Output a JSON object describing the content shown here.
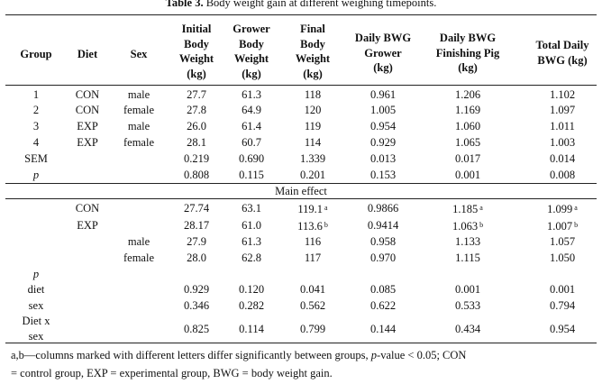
{
  "caption": {
    "label": "Table 3.",
    "text": "Body weight gain at different weighing timepoints."
  },
  "headers": {
    "group": "Group",
    "diet": "Diet",
    "sex": "Sex",
    "initial": [
      "Initial",
      "Body",
      "Weight",
      "(kg)"
    ],
    "grower": [
      "Grower",
      "Body",
      "Weight",
      "(kg)"
    ],
    "final": [
      "Final",
      "Body",
      "Weight",
      "(kg)"
    ],
    "dbwg_grower": [
      "Daily BWG",
      "Grower",
      "(kg)"
    ],
    "dbwg_finishing": [
      "Daily BWG",
      "Finishing Pig",
      "(kg)"
    ],
    "total": [
      "Total Daily",
      "BWG (kg)"
    ]
  },
  "group_rows": [
    {
      "group": "1",
      "diet": "CON",
      "sex": "male",
      "initial": "27.7",
      "grower": "61.3",
      "final": "118",
      "dbwg_grower": "0.961",
      "dbwg_finishing": "1.206",
      "total": "1.102"
    },
    {
      "group": "2",
      "diet": "CON",
      "sex": "female",
      "initial": "27.8",
      "grower": "64.9",
      "final": "120",
      "dbwg_grower": "1.005",
      "dbwg_finishing": "1.169",
      "total": "1.097"
    },
    {
      "group": "3",
      "diet": "EXP",
      "sex": "male",
      "initial": "26.0",
      "grower": "61.4",
      "final": "119",
      "dbwg_grower": "0.954",
      "dbwg_finishing": "1.060",
      "total": "1.011"
    },
    {
      "group": "4",
      "diet": "EXP",
      "sex": "female",
      "initial": "28.1",
      "grower": "60.7",
      "final": "114",
      "dbwg_grower": "0.929",
      "dbwg_finishing": "1.065",
      "total": "1.003"
    }
  ],
  "sem_row": {
    "label": "SEM",
    "initial": "0.219",
    "grower": "0.690",
    "final": "1.339",
    "dbwg_grower": "0.013",
    "dbwg_finishing": "0.017",
    "total": "0.014"
  },
  "p_row": {
    "label": "p",
    "initial": "0.808",
    "grower": "0.115",
    "final": "0.201",
    "dbwg_grower": "0.153",
    "dbwg_finishing": "0.001",
    "total": "0.008"
  },
  "main_effect_label": "Main effect",
  "diet_effect_rows": [
    {
      "diet": "CON",
      "initial": "27.74",
      "grower": "63.1",
      "final": "119.1",
      "final_sup": "a",
      "dbwg_grower": "0.9866",
      "dbwg_finishing": "1.185",
      "dbwg_finishing_sup": "a",
      "total": "1.099",
      "total_sup": "a"
    },
    {
      "diet": "EXP",
      "initial": "28.17",
      "grower": "61.0",
      "final": "113.6",
      "final_sup": "b",
      "dbwg_grower": "0.9414",
      "dbwg_finishing": "1.063",
      "dbwg_finishing_sup": "b",
      "total": "1.007",
      "total_sup": "b"
    }
  ],
  "sex_effect_rows": [
    {
      "sex": "male",
      "initial": "27.9",
      "grower": "61.3",
      "final": "116",
      "dbwg_grower": "0.958",
      "dbwg_finishing": "1.133",
      "total": "1.057"
    },
    {
      "sex": "female",
      "initial": "28.0",
      "grower": "62.8",
      "final": "117",
      "dbwg_grower": "0.970",
      "dbwg_finishing": "1.115",
      "total": "1.050"
    }
  ],
  "p_effects_label": "p",
  "p_effect_rows": [
    {
      "label": "diet",
      "initial": "0.929",
      "grower": "0.120",
      "final": "0.041",
      "dbwg_grower": "0.085",
      "dbwg_finishing": "0.001",
      "total": "0.001"
    },
    {
      "label": "sex",
      "initial": "0.346",
      "grower": "0.282",
      "final": "0.562",
      "dbwg_grower": "0.622",
      "dbwg_finishing": "0.533",
      "total": "0.794"
    }
  ],
  "interaction_row": {
    "label_line1": "Diet x",
    "label_line2": "sex",
    "initial": "0.825",
    "grower": "0.114",
    "final": "0.799",
    "dbwg_grower": "0.144",
    "dbwg_finishing": "0.434",
    "total": "0.954"
  },
  "footnote": {
    "part1": "a,b—columns marked with different letters differ significantly between groups, ",
    "p_italic": "p",
    "part2": "-value < 0.05; CON",
    "line2": "= control group, EXP = experimental group, BWG = body weight gain."
  }
}
